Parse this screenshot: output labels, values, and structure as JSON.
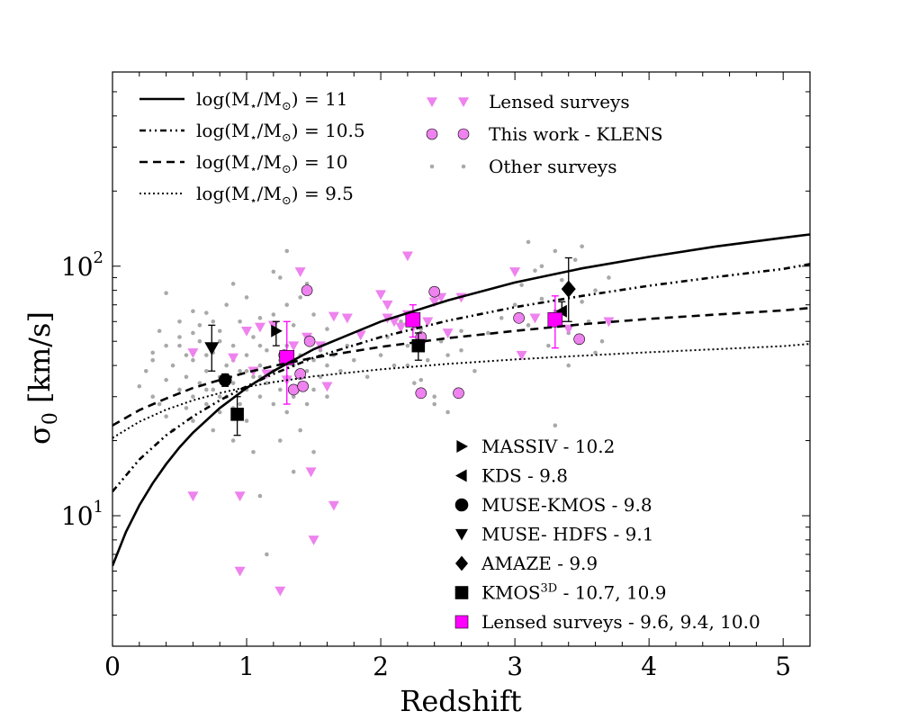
{
  "chart_data": {
    "type": "scatter",
    "xlabel": "Redshift",
    "ylabel": "σ0 [km/s]",
    "ylabel_main": "σ",
    "ylabel_sub": "0",
    "ylabel_rest": " [km/s]",
    "xlim": [
      0,
      5.2
    ],
    "ylim": [
      3,
      600
    ],
    "yscale": "log",
    "x_ticks": [
      0,
      1,
      2,
      3,
      4,
      5
    ],
    "x_tick_labels": [
      "0",
      "1",
      "2",
      "3",
      "4",
      "5"
    ],
    "y_ticks": [
      10,
      100
    ],
    "y_tick_base": "10",
    "y_tick_exps": [
      "1",
      "2"
    ],
    "grid": false,
    "colors": {
      "lensed": "#ee82ee",
      "klens": "#ee82ee",
      "other": "#a9a9a9",
      "lensed_mean": "#ff00ff",
      "black": "#000000"
    },
    "legend_top_left": [
      {
        "base": "log(M",
        "sub": "⋆",
        "mid": "/M",
        "sub2": "⊙",
        "rest": ") = 11",
        "style": "solid"
      },
      {
        "base": "log(M",
        "sub": "⋆",
        "mid": "/M",
        "sub2": "⊙",
        "rest": ") = 10.5",
        "style": "dashdot"
      },
      {
        "base": "log(M",
        "sub": "⋆",
        "mid": "/M",
        "sub2": "⊙",
        "rest": ") = 10",
        "style": "dashed"
      },
      {
        "base": "log(M",
        "sub": "⋆",
        "mid": "/M",
        "sub2": "⊙",
        "rest": ") = 9.5",
        "style": "dotted"
      }
    ],
    "legend_top_right": [
      {
        "label": "Lensed surveys",
        "marker": "triangle-down"
      },
      {
        "label": "This work - KLENS",
        "marker": "circle"
      },
      {
        "label": "Other surveys",
        "marker": "dot"
      }
    ],
    "legend_bottom_right": [
      {
        "label": "MASSIV - 10.2",
        "marker": "triangle-right"
      },
      {
        "label": "KDS - 9.8",
        "marker": "triangle-left"
      },
      {
        "label": "MUSE-KMOS - 9.8",
        "marker": "circle"
      },
      {
        "label": "MUSE- HDFS - 9.1",
        "marker": "triangle-down"
      },
      {
        "label": "AMAZE - 9.9",
        "marker": "diamond"
      },
      {
        "label": "KMOS",
        "sup": "3D",
        "rest": " - 10.7, 10.9",
        "marker": "square"
      },
      {
        "label": "Lensed surveys - 9.6, 9.4, 10.0",
        "marker": "square-magenta"
      }
    ],
    "curves": [
      {
        "name": "log(M⋆/M⊙) = 11",
        "style": "solid",
        "x": [
          0,
          0.1,
          0.2,
          0.3,
          0.4,
          0.5,
          0.6,
          0.8,
          1.0,
          1.2,
          1.5,
          2.0,
          2.5,
          3.0,
          3.5,
          4.0,
          4.5,
          5.0,
          5.2
        ],
        "y": [
          6.3,
          8.6,
          11.0,
          13.5,
          16.1,
          18.8,
          21.5,
          27.0,
          32.5,
          38.0,
          46.5,
          60.0,
          73.0,
          86.0,
          98.0,
          109.0,
          120.0,
          130.0,
          134.0
        ]
      },
      {
        "name": "log(M⋆/M⊙) = 10.5",
        "style": "dashdot",
        "x": [
          0,
          0.2,
          0.4,
          0.6,
          0.8,
          1.0,
          1.2,
          1.5,
          2.0,
          2.5,
          3.0,
          3.5,
          4.0,
          4.5,
          5.0,
          5.2
        ],
        "y": [
          12.5,
          16.8,
          21.0,
          25.0,
          29.0,
          33.0,
          37.0,
          43.0,
          52.0,
          60.5,
          68.5,
          76.0,
          83.5,
          90.5,
          97.5,
          102.0
        ]
      },
      {
        "name": "log(M⋆/M⊙) = 10",
        "style": "dashed",
        "x": [
          0,
          0.2,
          0.4,
          0.6,
          0.8,
          1.0,
          1.2,
          1.5,
          2.0,
          2.5,
          3.0,
          3.5,
          4.0,
          4.5,
          5.0,
          5.2
        ],
        "y": [
          23.0,
          26.5,
          29.5,
          32.5,
          35.0,
          37.5,
          39.8,
          43.0,
          47.5,
          51.5,
          55.0,
          58.5,
          61.5,
          64.0,
          66.5,
          68.0
        ]
      },
      {
        "name": "log(M⋆/M⊙) = 9.5",
        "style": "dotted",
        "x": [
          0,
          0.2,
          0.4,
          0.6,
          0.8,
          1.0,
          1.2,
          1.5,
          2.0,
          2.5,
          3.0,
          3.5,
          4.0,
          4.5,
          5.0,
          5.2
        ],
        "y": [
          20.5,
          23.8,
          26.6,
          29.0,
          31.0,
          32.8,
          34.3,
          36.2,
          38.6,
          40.6,
          42.3,
          43.8,
          45.2,
          46.5,
          47.8,
          48.8
        ]
      }
    ],
    "other_surveys": [
      [
        0.2,
        33
      ],
      [
        0.25,
        38
      ],
      [
        0.3,
        30
      ],
      [
        0.3,
        45
      ],
      [
        0.35,
        28
      ],
      [
        0.35,
        55
      ],
      [
        0.4,
        35
      ],
      [
        0.4,
        25
      ],
      [
        0.4,
        78
      ],
      [
        0.45,
        40
      ],
      [
        0.45,
        22
      ],
      [
        0.5,
        32
      ],
      [
        0.5,
        48
      ],
      [
        0.5,
        60
      ],
      [
        0.55,
        27
      ],
      [
        0.55,
        36
      ],
      [
        0.6,
        42
      ],
      [
        0.6,
        30
      ],
      [
        0.6,
        24
      ],
      [
        0.65,
        50
      ],
      [
        0.65,
        34
      ],
      [
        0.7,
        38
      ],
      [
        0.7,
        28
      ],
      [
        0.7,
        65
      ],
      [
        0.75,
        45
      ],
      [
        0.75,
        32
      ],
      [
        0.75,
        22
      ],
      [
        0.8,
        36
      ],
      [
        0.8,
        55
      ],
      [
        0.8,
        26
      ],
      [
        0.85,
        40
      ],
      [
        0.85,
        30
      ],
      [
        0.85,
        70
      ],
      [
        0.9,
        48
      ],
      [
        0.9,
        34
      ],
      [
        0.9,
        20
      ],
      [
        0.9,
        85
      ],
      [
        0.95,
        38
      ],
      [
        0.95,
        28
      ],
      [
        0.95,
        60
      ],
      [
        1.0,
        44
      ],
      [
        1.0,
        32
      ],
      [
        1.0,
        24
      ],
      [
        1.0,
        75
      ],
      [
        1.05,
        36
      ],
      [
        1.05,
        52
      ],
      [
        1.05,
        18
      ],
      [
        1.1,
        40
      ],
      [
        1.1,
        30
      ],
      [
        1.1,
        62
      ],
      [
        1.1,
        12
      ],
      [
        1.15,
        46
      ],
      [
        1.15,
        34
      ],
      [
        1.15,
        7
      ],
      [
        1.2,
        38
      ],
      [
        1.2,
        28
      ],
      [
        1.2,
        54
      ],
      [
        1.25,
        42
      ],
      [
        1.25,
        32
      ],
      [
        1.25,
        20
      ],
      [
        1.25,
        90
      ],
      [
        1.3,
        36
      ],
      [
        1.3,
        48
      ],
      [
        1.3,
        26
      ],
      [
        1.35,
        40
      ],
      [
        1.35,
        30
      ],
      [
        1.35,
        58
      ],
      [
        1.35,
        15
      ],
      [
        1.4,
        44
      ],
      [
        1.4,
        34
      ],
      [
        1.4,
        22
      ],
      [
        1.45,
        38
      ],
      [
        1.45,
        50
      ],
      [
        1.45,
        28
      ],
      [
        1.5,
        42
      ],
      [
        1.5,
        32
      ],
      [
        1.5,
        64
      ],
      [
        1.5,
        18
      ],
      [
        1.55,
        36
      ],
      [
        1.55,
        46
      ],
      [
        1.6,
        40
      ],
      [
        1.6,
        30
      ],
      [
        1.6,
        56
      ],
      [
        1.65,
        44
      ],
      [
        1.7,
        38
      ],
      [
        1.75,
        48
      ],
      [
        1.8,
        42
      ],
      [
        1.9,
        36
      ],
      [
        2.0,
        44
      ],
      [
        2.05,
        52
      ],
      [
        2.1,
        40
      ],
      [
        2.15,
        60
      ],
      [
        2.2,
        48
      ],
      [
        2.25,
        34
      ],
      [
        2.3,
        56
      ],
      [
        2.35,
        42
      ],
      [
        2.4,
        30
      ],
      [
        2.45,
        50
      ],
      [
        2.5,
        26
      ],
      [
        2.6,
        46
      ],
      [
        2.7,
        38
      ],
      [
        2.8,
        54
      ],
      [
        2.9,
        62
      ],
      [
        3.0,
        70
      ],
      [
        3.05,
        84
      ],
      [
        3.1,
        58
      ],
      [
        3.15,
        96
      ],
      [
        3.2,
        74
      ],
      [
        3.25,
        48
      ],
      [
        3.3,
        66
      ],
      [
        3.35,
        88
      ],
      [
        3.4,
        54
      ],
      [
        3.45,
        106
      ],
      [
        3.5,
        72
      ],
      [
        3.55,
        60
      ],
      [
        3.6,
        80
      ],
      [
        3.65,
        50
      ],
      [
        3.7,
        90
      ],
      [
        3.2,
        100
      ],
      [
        3.3,
        115
      ],
      [
        3.1,
        125
      ],
      [
        3.5,
        120
      ],
      [
        0.6,
        54
      ],
      [
        0.7,
        44
      ],
      [
        0.8,
        50
      ],
      [
        0.9,
        42
      ],
      [
        1.0,
        56
      ],
      [
        1.1,
        48
      ],
      [
        1.2,
        64
      ],
      [
        1.3,
        70
      ],
      [
        0.3,
        42
      ],
      [
        0.4,
        48
      ],
      [
        0.5,
        52
      ],
      [
        0.6,
        66
      ],
      [
        1.4,
        75
      ],
      [
        1.45,
        85
      ],
      [
        1.2,
        95
      ],
      [
        1.3,
        115
      ],
      [
        0.7,
        32
      ],
      [
        0.8,
        30
      ],
      [
        0.9,
        27
      ],
      [
        1.0,
        38
      ],
      [
        1.1,
        36
      ],
      [
        0.55,
        44
      ],
      [
        0.65,
        58
      ],
      [
        0.75,
        60
      ],
      [
        2.2,
        40
      ],
      [
        2.3,
        35
      ],
      [
        2.4,
        28
      ],
      [
        2.5,
        44
      ],
      [
        2.6,
        55
      ],
      [
        3.3,
        23
      ],
      [
        3.4,
        40
      ],
      [
        3.6,
        45
      ]
    ],
    "lensed_surveys": [
      [
        0.6,
        45
      ],
      [
        0.6,
        12
      ],
      [
        0.9,
        43
      ],
      [
        0.95,
        12
      ],
      [
        0.95,
        6
      ],
      [
        1.0,
        55
      ],
      [
        1.05,
        38
      ],
      [
        1.1,
        57
      ],
      [
        1.15,
        37
      ],
      [
        1.2,
        58
      ],
      [
        1.25,
        5
      ],
      [
        1.3,
        35
      ],
      [
        1.35,
        48
      ],
      [
        1.4,
        95
      ],
      [
        1.45,
        52
      ],
      [
        1.48,
        15
      ],
      [
        1.5,
        8
      ],
      [
        1.55,
        48
      ],
      [
        1.6,
        33
      ],
      [
        1.65,
        63
      ],
      [
        1.65,
        11
      ],
      [
        1.75,
        62
      ],
      [
        1.85,
        53
      ],
      [
        2.0,
        77
      ],
      [
        2.05,
        70
      ],
      [
        2.05,
        62
      ],
      [
        2.1,
        60
      ],
      [
        2.15,
        57
      ],
      [
        2.2,
        64
      ],
      [
        2.2,
        110
      ],
      [
        2.25,
        58
      ],
      [
        2.3,
        48
      ],
      [
        2.35,
        60
      ],
      [
        2.4,
        72
      ],
      [
        2.45,
        75
      ],
      [
        2.5,
        54
      ],
      [
        2.6,
        75
      ],
      [
        3.0,
        95
      ],
      [
        3.05,
        44
      ],
      [
        3.15,
        62
      ],
      [
        3.4,
        56
      ],
      [
        3.7,
        60
      ]
    ],
    "klens": [
      [
        1.28,
        44
      ],
      [
        1.35,
        32
      ],
      [
        1.4,
        37
      ],
      [
        1.42,
        33
      ],
      [
        1.45,
        80
      ],
      [
        1.47,
        50
      ],
      [
        2.3,
        52
      ],
      [
        2.3,
        31
      ],
      [
        2.4,
        79
      ],
      [
        2.58,
        31
      ],
      [
        3.03,
        62
      ],
      [
        3.48,
        51
      ]
    ],
    "massiv": [
      {
        "x": 1.22,
        "y": 55,
        "lo": 48,
        "hi": 60
      }
    ],
    "kds": [
      {
        "x": 3.35,
        "y": 66,
        "lo": 60,
        "hi": 72
      }
    ],
    "muse_kmos": [
      {
        "x": 0.84,
        "y": 35,
        "lo": 33,
        "hi": 37
      }
    ],
    "muse_hdfs": [
      {
        "x": 0.74,
        "y": 47,
        "lo": 38,
        "hi": 58
      }
    ],
    "amaze": [
      {
        "x": 3.4,
        "y": 81,
        "lo": 60,
        "hi": 108
      }
    ],
    "kmos3d": [
      {
        "x": 0.93,
        "y": 25.5,
        "lo": 21,
        "hi": 30
      },
      {
        "x": 2.28,
        "y": 48,
        "lo": 42,
        "hi": 54
      }
    ],
    "lensed_means": [
      {
        "x": 1.3,
        "y": 43,
        "lo": 28,
        "hi": 60
      },
      {
        "x": 2.24,
        "y": 61,
        "lo": 52,
        "hi": 70
      },
      {
        "x": 3.3,
        "y": 61,
        "lo": 47,
        "hi": 76
      }
    ]
  }
}
